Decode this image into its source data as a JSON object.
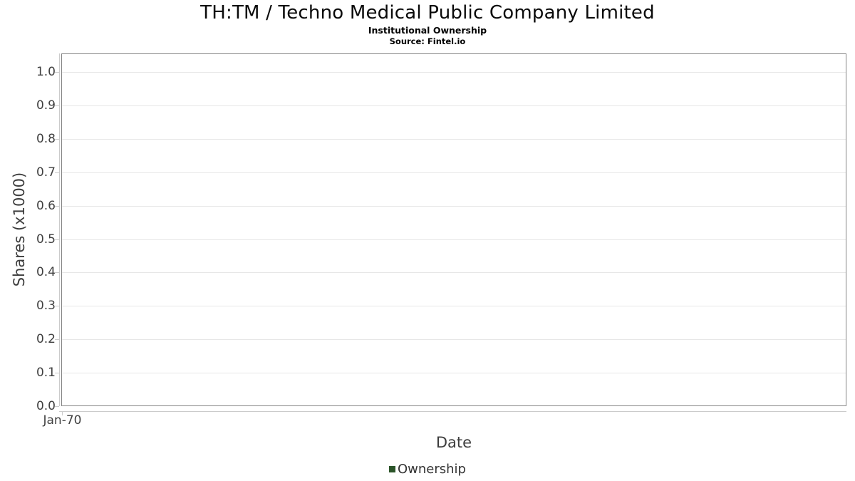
{
  "chart_data": {
    "type": "line",
    "title": "TH:TM / Techno Medical Public Company Limited",
    "subtitle": "Institutional Ownership",
    "source": "Source: Fintel.io",
    "xlabel": "Date",
    "ylabel": "Shares (x1000)",
    "ylim": [
      0.0,
      1.0
    ],
    "y_tick_step": 0.1,
    "y_ticks": [
      "0.0",
      "0.1",
      "0.2",
      "0.3",
      "0.4",
      "0.5",
      "0.6",
      "0.7",
      "0.8",
      "0.9",
      "1.0"
    ],
    "x_ticks": [
      "Jan-70"
    ],
    "grid": "horizontal",
    "legend_position": "bottom",
    "legend": [
      {
        "label": "Ownership",
        "marker": "square",
        "color": "#2b5429"
      }
    ],
    "series": [
      {
        "name": "Ownership",
        "x": [],
        "y": []
      }
    ]
  }
}
